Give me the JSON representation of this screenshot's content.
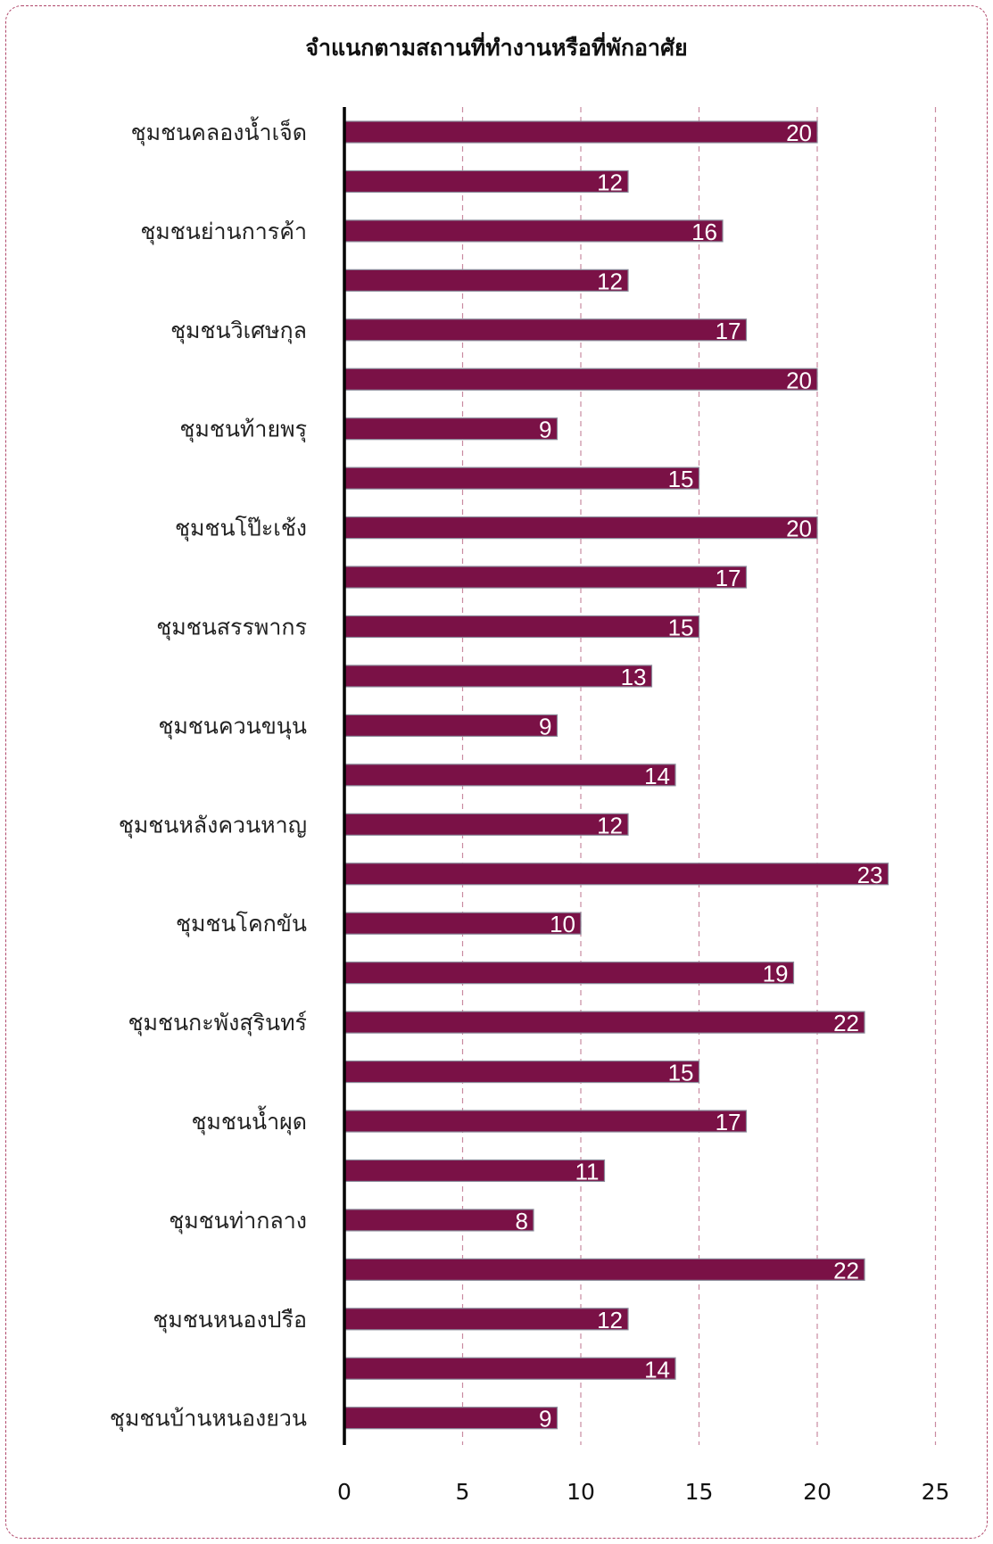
{
  "chart_data": {
    "type": "bar",
    "orientation": "horizontal",
    "title": "จำแนกตามสถานที่ทำงานหรือที่พักอาศัย",
    "xlabel": "",
    "ylabel": "",
    "xlim": [
      0,
      25
    ],
    "x_ticks": [
      0,
      5,
      10,
      15,
      20,
      25
    ],
    "grid": "vertical dashed",
    "legend": "none",
    "colors": {
      "bar": "#7a1146",
      "bar_edge": "#8a8a9a",
      "grid": "#c98aa0",
      "axis": "#000000"
    },
    "categories": [
      "ชุมชนคลองน้ำเจ็ด",
      "",
      "ชุมชนย่านการค้า",
      "",
      "ชุมชนวิเศษกุล",
      "",
      "ชุมชนท้ายพรุ",
      "",
      "ชุมชนโป๊ะเช้ง",
      "",
      "ชุมชนสรรพากร",
      "",
      "ชุมชนควนขนุน",
      "",
      "ชุมชนหลังควนหาญ",
      "",
      "ชุมชนโคกขัน",
      "",
      "ชุมชนกะพังสุรินทร์",
      "",
      "ชุมชนน้ำผุด",
      "",
      "ชุมชนท่ากลาง",
      "",
      "ชุมชนหนองปรือ",
      "",
      "ชุมชนบ้านหนองยวน"
    ],
    "values": [
      20,
      12,
      16,
      12,
      17,
      20,
      9,
      15,
      20,
      17,
      15,
      13,
      9,
      14,
      12,
      23,
      10,
      19,
      22,
      15,
      17,
      11,
      8,
      22,
      12,
      14,
      9
    ]
  }
}
